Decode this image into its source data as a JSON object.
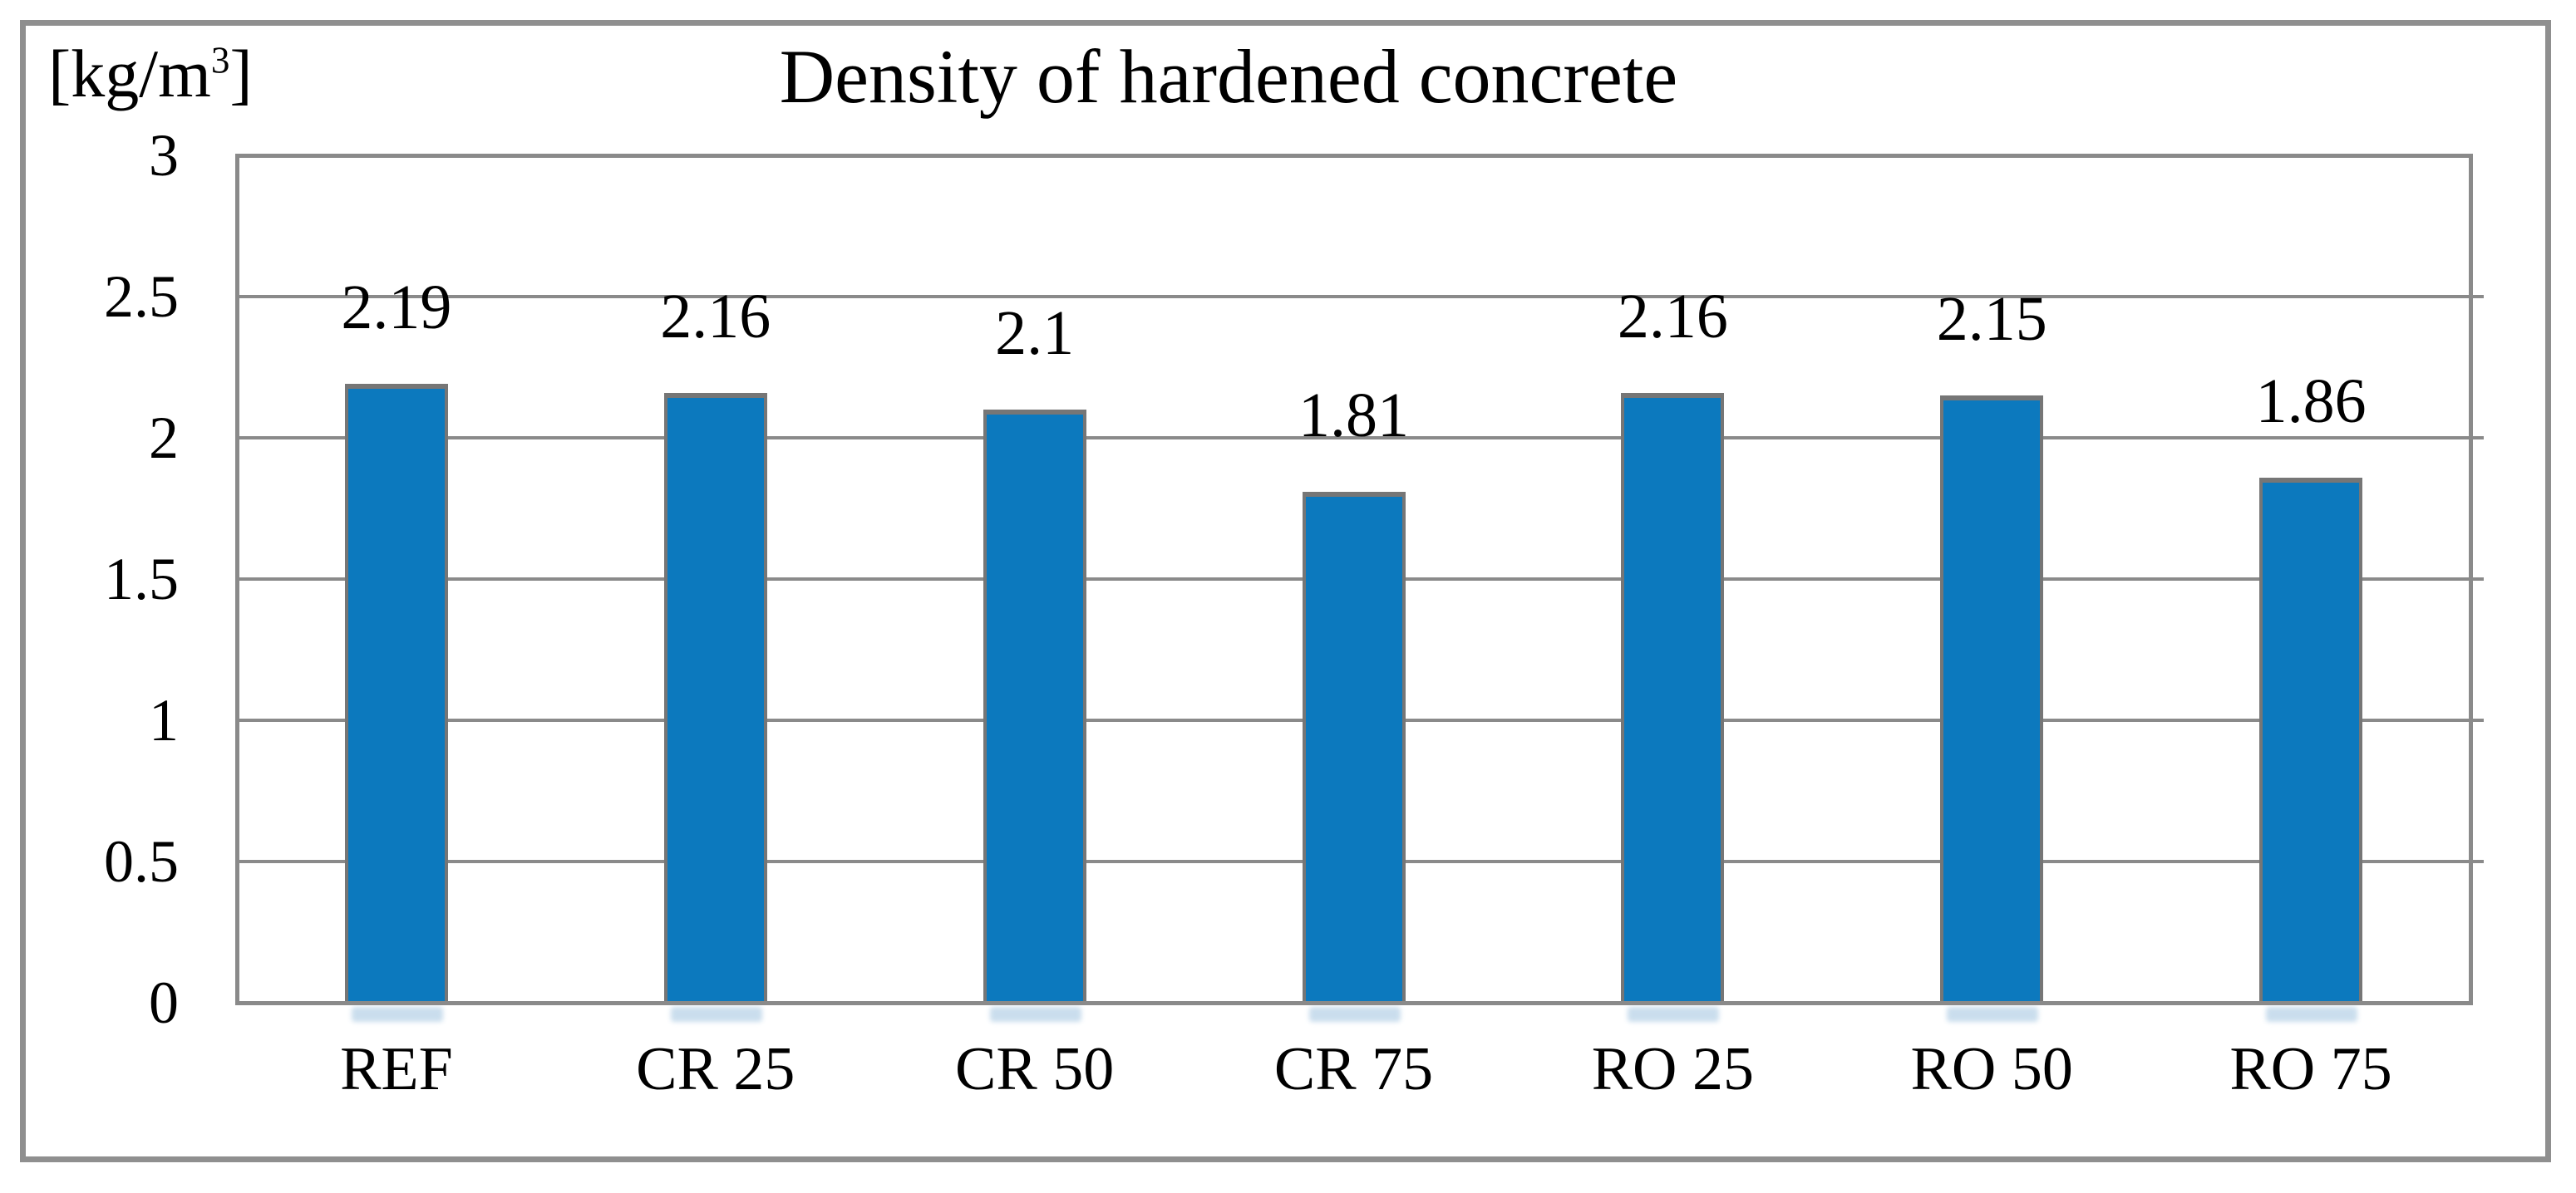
{
  "figure": {
    "title": "Density of hardened concrete",
    "unit_prefix": "[kg/m",
    "unit_sup": "3",
    "unit_suffix": "]"
  },
  "chart_data": {
    "type": "bar",
    "title": "Density of hardened concrete",
    "ylabel": "[kg/m³]",
    "xlabel": "",
    "categories": [
      "REF",
      "CR 25",
      "CR 50",
      "CR 75",
      "RO 25",
      "RO 50",
      "RO 75"
    ],
    "values": [
      2.19,
      2.16,
      2.1,
      1.81,
      2.16,
      2.15,
      1.86
    ],
    "value_labels": [
      "2.19",
      "2.16",
      "2.1",
      "1.81",
      "2.16",
      "2.15",
      "1.86"
    ],
    "ylim": [
      0,
      3
    ],
    "yticks": [
      {
        "value": 3,
        "label": "3"
      },
      {
        "value": 2.5,
        "label": "2.5"
      },
      {
        "value": 2,
        "label": "2"
      },
      {
        "value": 1.5,
        "label": "1.5"
      },
      {
        "value": 1,
        "label": "1"
      },
      {
        "value": 0.5,
        "label": "0.5"
      },
      {
        "value": 0,
        "label": "0"
      }
    ],
    "grid": true,
    "legend": false,
    "colors": {
      "bar_fill": "#0c79be",
      "bar_border": "#767676",
      "gridline": "#8a8a8a",
      "plot_border": "#8a8a8a",
      "frame_border": "#8f8f8f",
      "text": "#000000",
      "background": "#ffffff"
    }
  }
}
